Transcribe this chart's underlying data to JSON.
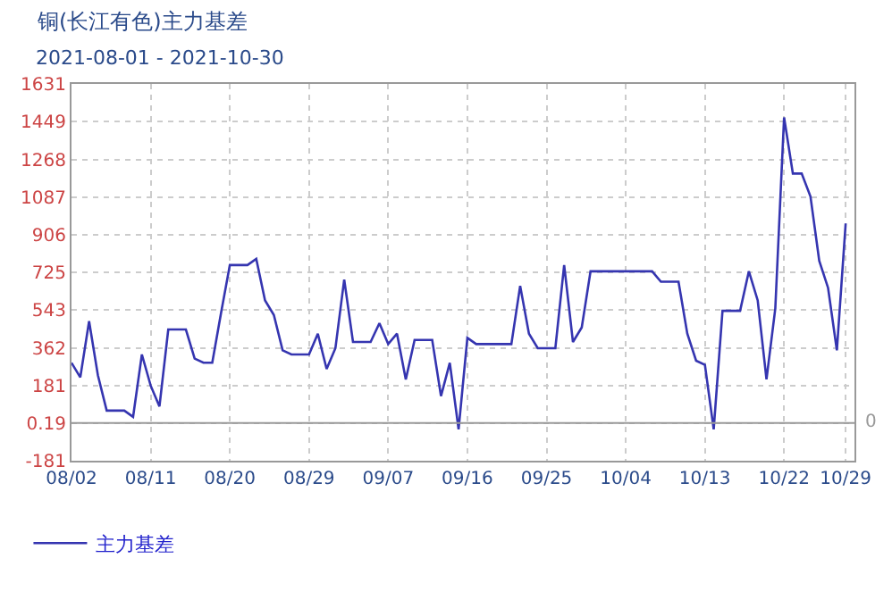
{
  "chart_data": {
    "type": "line",
    "title": "铜(长江有色)主力基差",
    "subtitle": "2021-08-01 - 2021-10-30",
    "x": [
      "2021-08-02",
      "2021-08-03",
      "2021-08-04",
      "2021-08-05",
      "2021-08-06",
      "2021-08-08",
      "2021-08-09",
      "2021-08-10",
      "2021-08-11",
      "2021-08-12",
      "2021-08-13",
      "2021-08-15",
      "2021-08-16",
      "2021-08-17",
      "2021-08-18",
      "2021-08-19",
      "2021-08-20",
      "2021-08-22",
      "2021-08-23",
      "2021-08-24",
      "2021-08-25",
      "2021-08-26",
      "2021-08-27",
      "2021-08-29",
      "2021-08-30",
      "2021-08-31",
      "2021-09-01",
      "2021-09-02",
      "2021-09-03",
      "2021-09-05",
      "2021-09-06",
      "2021-09-07",
      "2021-09-08",
      "2021-09-09",
      "2021-09-10",
      "2021-09-12",
      "2021-09-13",
      "2021-09-14",
      "2021-09-15",
      "2021-09-16",
      "2021-09-17",
      "2021-09-21",
      "2021-09-22",
      "2021-09-23",
      "2021-09-24",
      "2021-09-26",
      "2021-09-27",
      "2021-09-28",
      "2021-09-29",
      "2021-09-30",
      "2021-10-07",
      "2021-10-08",
      "2021-10-10",
      "2021-10-11",
      "2021-10-12",
      "2021-10-13",
      "2021-10-14",
      "2021-10-15",
      "2021-10-17",
      "2021-10-18",
      "2021-10-19",
      "2021-10-20",
      "2021-10-21",
      "2021-10-22",
      "2021-10-23",
      "2021-10-24",
      "2021-10-25",
      "2021-10-26",
      "2021-10-27",
      "2021-10-28",
      "2021-10-29"
    ],
    "series": [
      {
        "name": "主力基差",
        "color": "#3535b0",
        "values": [
          290,
          220,
          490,
          230,
          60,
          60,
          30,
          330,
          180,
          80,
          450,
          450,
          310,
          290,
          290,
          530,
          760,
          760,
          790,
          590,
          520,
          350,
          330,
          330,
          430,
          260,
          360,
          690,
          390,
          390,
          480,
          380,
          430,
          210,
          400,
          400,
          130,
          290,
          -30,
          410,
          380,
          380,
          660,
          430,
          360,
          360,
          760,
          390,
          460,
          730,
          730,
          680,
          680,
          430,
          300,
          280,
          -30,
          540,
          540,
          730,
          590,
          210,
          550,
          1470,
          1200,
          1200,
          1090,
          780,
          650,
          350,
          960
        ]
      }
    ],
    "xlim": [
      "2021-08-02",
      "2021-10-30"
    ],
    "xticks": [
      {
        "value": "2021-08-02",
        "label": "08/02"
      },
      {
        "value": "2021-08-11",
        "label": "08/11"
      },
      {
        "value": "2021-08-20",
        "label": "08/20"
      },
      {
        "value": "2021-08-29",
        "label": "08/29"
      },
      {
        "value": "2021-09-07",
        "label": "09/07"
      },
      {
        "value": "2021-09-16",
        "label": "09/16"
      },
      {
        "value": "2021-09-25",
        "label": "09/25"
      },
      {
        "value": "2021-10-04",
        "label": "10/04"
      },
      {
        "value": "2021-10-13",
        "label": "10/13"
      },
      {
        "value": "2021-10-22",
        "label": "10/22"
      },
      {
        "value": "2021-10-29",
        "label": "10/29"
      }
    ],
    "ylim": [
      -181,
      1631
    ],
    "yticks": [
      -181,
      0.19,
      181,
      362,
      543,
      725,
      906,
      1087,
      1268,
      1449,
      1631
    ],
    "ref_lines": [
      {
        "axis": "y",
        "value": 0,
        "label": "0",
        "color": "#999999"
      }
    ],
    "grid": true,
    "legend": "bottom left",
    "marker": "none",
    "line_style": "solid"
  }
}
